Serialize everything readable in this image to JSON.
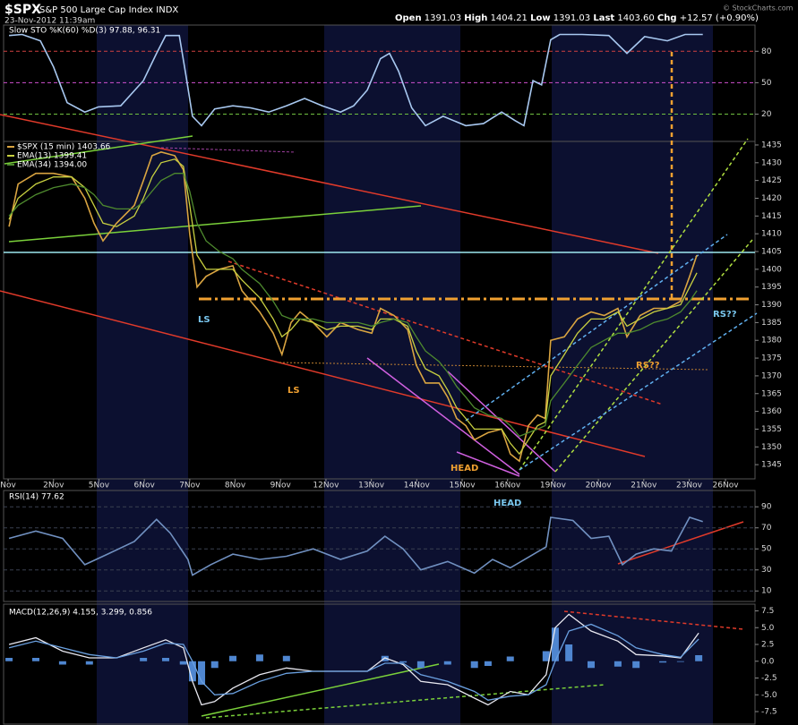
{
  "header": {
    "symbol": "$SPX",
    "name": "S&P 500 Large Cap Index INDX",
    "datetime": "23-Nov-2012 11:39am",
    "watermark": "© StockCharts.com",
    "quote": [
      {
        "label": "Open",
        "value": "1391.03"
      },
      {
        "label": "High",
        "value": "1404.21"
      },
      {
        "label": "Low",
        "value": "1391.03"
      },
      {
        "label": "Last",
        "value": "1403.60"
      },
      {
        "label": "Chg",
        "value": "+12.57 (+0.90%)"
      }
    ]
  },
  "chart_data": [
    {
      "type": "line",
      "title": "Slow STO %K(60) %D(3) 97.88, 96.31",
      "grid": true,
      "grid_colors": [
        "#d04040",
        "#d050d0",
        "#70c040"
      ],
      "xlim": [
        -0.1,
        16.45
      ],
      "ylim": [
        -6,
        105
      ],
      "yticks": [
        80,
        50,
        20
      ],
      "x": [
        0.02,
        0.31,
        0.71,
        1.0,
        1.3,
        1.69,
        1.99,
        2.48,
        2.98,
        3.27,
        3.47,
        3.77,
        3.92,
        4.06,
        4.26,
        4.55,
        4.95,
        5.34,
        5.74,
        6.13,
        6.53,
        6.92,
        7.32,
        7.61,
        7.91,
        8.2,
        8.4,
        8.6,
        8.89,
        9.19,
        9.58,
        10.08,
        10.47,
        10.87,
        11.16,
        11.36,
        11.56,
        11.75,
        11.95,
        12.15,
        12.64,
        13.23,
        13.63,
        14.02,
        14.52,
        14.91,
        15.3
      ],
      "series": [
        {
          "color": "#a8c8f0",
          "values": [
            95,
            96,
            90,
            65,
            31,
            22,
            27,
            28,
            52,
            78,
            95,
            95,
            56,
            18,
            9,
            25,
            28,
            26,
            22,
            28,
            35,
            28,
            22,
            28,
            43,
            73,
            78,
            61,
            26,
            9,
            18,
            9,
            11,
            22,
            14,
            9,
            52,
            48,
            91,
            96,
            96,
            95,
            78,
            94,
            90,
            96,
            96
          ]
        }
      ]
    },
    {
      "type": "line",
      "grid": false,
      "xlim": [
        -0.1,
        16.45
      ],
      "ylim": [
        1341,
        1436
      ],
      "yticks": [
        1345,
        1350,
        1355,
        1360,
        1365,
        1370,
        1375,
        1380,
        1385,
        1390,
        1395,
        1400,
        1405,
        1410,
        1415,
        1420,
        1425,
        1430,
        1435
      ],
      "xticks": [
        {
          "value": 0,
          "label": "Nov"
        },
        {
          "value": 1,
          "label": "2Nov"
        },
        {
          "value": 2,
          "label": "5Nov"
        },
        {
          "value": 3,
          "label": "6Nov"
        },
        {
          "value": 4,
          "label": "7Nov"
        },
        {
          "value": 5,
          "label": "8Nov"
        },
        {
          "value": 6,
          "label": "9Nov"
        },
        {
          "value": 7,
          "label": "12Nov"
        },
        {
          "value": 8,
          "label": "13Nov"
        },
        {
          "value": 9,
          "label": "14Nov"
        },
        {
          "value": 10,
          "label": "15Nov"
        },
        {
          "value": 11,
          "label": "16Nov"
        },
        {
          "value": 12,
          "label": "19Nov"
        },
        {
          "value": 13,
          "label": "20Nov"
        },
        {
          "value": 14,
          "label": "21Nov"
        },
        {
          "value": 15,
          "label": "23Nov"
        },
        {
          "value": 15.8,
          "label": "26Nov"
        }
      ],
      "annotations": [
        "LS",
        "LS",
        "HEAD",
        "HEAD",
        "RS??",
        "RS??"
      ],
      "x": [
        0.02,
        0.22,
        0.61,
        1.0,
        1.4,
        1.69,
        1.89,
        2.09,
        2.39,
        2.78,
        2.98,
        3.17,
        3.37,
        3.67,
        3.86,
        4.0,
        4.16,
        4.36,
        4.65,
        4.95,
        5.15,
        5.54,
        5.84,
        6.03,
        6.23,
        6.43,
        6.72,
        7.02,
        7.32,
        7.71,
        8.01,
        8.2,
        8.5,
        8.8,
        8.99,
        9.19,
        9.49,
        9.68,
        9.88,
        10.08,
        10.27,
        10.57,
        10.87,
        11.06,
        11.26,
        11.46,
        11.66,
        11.83,
        11.95,
        12.25,
        12.54,
        12.84,
        13.13,
        13.43,
        13.63,
        13.92,
        14.22,
        14.52,
        14.81,
        15.01,
        15.17
      ],
      "series": [
        {
          "name": "$SPX (15 min) 1403.66",
          "color": "#d9a441",
          "values": [
            1412,
            1424,
            1427,
            1427,
            1426,
            1420,
            1413,
            1408,
            1413,
            1418,
            1425,
            1432,
            1433,
            1432,
            1428,
            1410,
            1395,
            1398,
            1400,
            1401,
            1394,
            1388,
            1382,
            1376,
            1385,
            1388,
            1385,
            1381,
            1385,
            1383,
            1382,
            1389,
            1387,
            1383,
            1373,
            1368,
            1368,
            1364,
            1358,
            1356,
            1352,
            1354,
            1355,
            1348,
            1346,
            1356,
            1359,
            1358,
            1380,
            1381,
            1386,
            1388,
            1387,
            1389,
            1381,
            1387,
            1389,
            1389,
            1391,
            1398,
            1404
          ]
        },
        {
          "name": "EMA(13) 1399.41",
          "color": "#c8d040",
          "values": [
            1414,
            1420,
            1424,
            1426,
            1426,
            1423,
            1418,
            1413,
            1412,
            1415,
            1420,
            1426,
            1430,
            1431,
            1429,
            1418,
            1404,
            1400,
            1400,
            1400,
            1397,
            1392,
            1386,
            1381,
            1383,
            1386,
            1385,
            1383,
            1384,
            1384,
            1383,
            1386,
            1386,
            1384,
            1377,
            1372,
            1370,
            1366,
            1361,
            1358,
            1355,
            1355,
            1355,
            1351,
            1348,
            1352,
            1356,
            1357,
            1370,
            1376,
            1382,
            1386,
            1386,
            1388,
            1384,
            1386,
            1388,
            1389,
            1390,
            1395,
            1399
          ]
        },
        {
          "name": "EMA(34) 1394.00",
          "color": "#4e8a2e",
          "values": [
            1415,
            1418,
            1421,
            1423,
            1424,
            1423,
            1421,
            1418,
            1417,
            1417,
            1419,
            1422,
            1425,
            1427,
            1427,
            1422,
            1413,
            1408,
            1405,
            1403,
            1400,
            1396,
            1391,
            1387,
            1386,
            1386,
            1386,
            1385,
            1385,
            1385,
            1384,
            1385,
            1386,
            1385,
            1381,
            1377,
            1374,
            1371,
            1367,
            1364,
            1361,
            1359,
            1358,
            1356,
            1353,
            1354,
            1355,
            1356,
            1363,
            1368,
            1373,
            1378,
            1380,
            1382,
            1382,
            1383,
            1385,
            1386,
            1388,
            1391,
            1394
          ]
        }
      ]
    },
    {
      "type": "line",
      "title": "RSI(14) 77.62",
      "grid": true,
      "xlim": [
        -0.1,
        16.45
      ],
      "ylim": [
        0,
        105.5
      ],
      "yticks": [
        90,
        70,
        50,
        30,
        10
      ],
      "x": [
        0.02,
        0.61,
        1.2,
        1.69,
        2.19,
        2.78,
        3.27,
        3.57,
        3.96,
        4.06,
        4.46,
        4.95,
        5.54,
        6.13,
        6.72,
        7.32,
        7.91,
        8.3,
        8.7,
        9.09,
        9.68,
        10.27,
        10.67,
        11.06,
        11.46,
        11.85,
        11.95,
        12.44,
        12.84,
        13.23,
        13.53,
        13.83,
        14.22,
        14.61,
        15.01,
        15.3
      ],
      "series": [
        {
          "color": "#7090c0",
          "values": [
            60,
            67,
            60,
            35,
            45,
            57,
            78,
            65,
            40,
            25,
            35,
            45,
            40,
            43,
            50,
            40,
            48,
            62,
            50,
            30,
            38,
            27,
            40,
            32,
            42,
            52,
            80,
            77,
            60,
            62,
            35,
            45,
            50,
            48,
            80,
            76
          ]
        }
      ]
    },
    {
      "type": "line",
      "title": "MACD(12,26,9) 4.155, 3.299, 0.856",
      "grid": false,
      "xlim": [
        -0.1,
        16.45
      ],
      "ylim": [
        -9.5,
        8.5
      ],
      "yticks": [
        7.5,
        {
          "value": 5,
          "label": "5.0"
        },
        2.5,
        {
          "value": 0,
          "label": "0.0"
        },
        -2.5,
        {
          "value": -5,
          "label": "-5.0"
        },
        -7.5
      ],
      "x": [
        0.02,
        0.61,
        1.2,
        1.79,
        2.39,
        2.98,
        3.47,
        3.86,
        4.06,
        4.26,
        4.55,
        4.95,
        5.54,
        6.13,
        6.72,
        7.32,
        7.91,
        8.3,
        8.7,
        9.09,
        9.68,
        10.27,
        10.57,
        11.06,
        11.46,
        11.85,
        12.05,
        12.35,
        12.84,
        13.43,
        13.83,
        14.42,
        14.81,
        15.21
      ],
      "series": [
        {
          "type": "bar",
          "color": "#4f86d0",
          "values": [
            0.5,
            0.5,
            -0.5,
            -0.5,
            0,
            0.5,
            0.5,
            -0.5,
            -3,
            -3.5,
            -1,
            0.8,
            1,
            0.8,
            0,
            0,
            0,
            0.8,
            -0.2,
            -1,
            -0.5,
            -1,
            -0.7,
            0.7,
            0,
            1.5,
            5,
            2.5,
            -1,
            -0.8,
            -1,
            -0.2,
            -0.1,
            0.9
          ]
        },
        {
          "color": "#e8e8f0",
          "values": [
            2.5,
            3.5,
            1.5,
            0.5,
            0.5,
            2.0,
            3.2,
            2.0,
            -3,
            -6.5,
            -6.0,
            -4.0,
            -2.0,
            -1.0,
            -1.5,
            -1.5,
            -1.5,
            0.5,
            -0.5,
            -3,
            -3.5,
            -5.5,
            -6.5,
            -4.5,
            -5,
            -2,
            5,
            7.0,
            4.5,
            3.0,
            1.0,
            0.8,
            0.5,
            4.2
          ]
        },
        {
          "color": "#6aa0e0",
          "values": [
            2.0,
            3.0,
            2.0,
            1.0,
            0.5,
            1.5,
            2.7,
            2.5,
            0,
            -3,
            -5,
            -4.8,
            -3,
            -1.8,
            -1.5,
            -1.5,
            -1.5,
            -0.3,
            -0.3,
            -2,
            -3,
            -4.5,
            -5.8,
            -5.2,
            -5,
            -3.5,
            0,
            4.5,
            5.5,
            3.8,
            2.0,
            1.0,
            0.6,
            3.3
          ]
        }
      ]
    }
  ]
}
